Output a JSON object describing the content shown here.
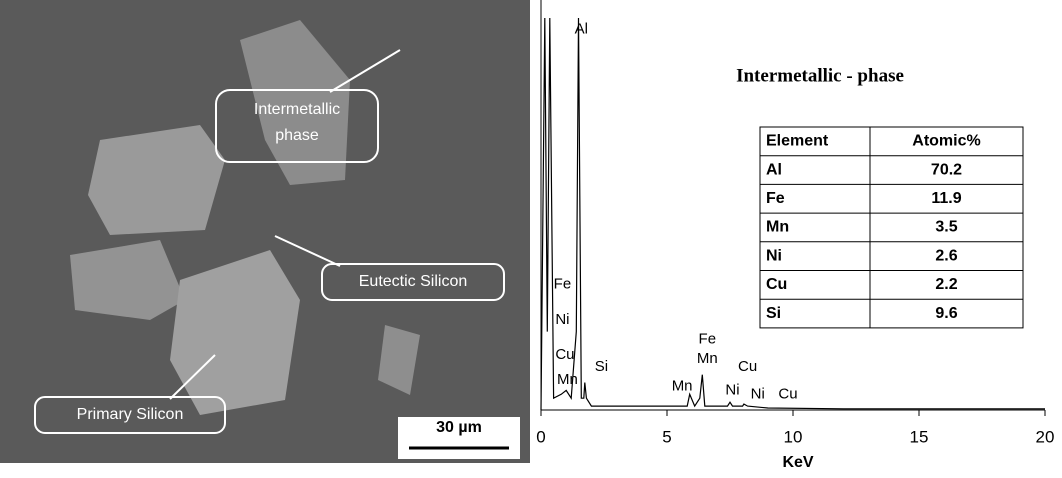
{
  "sem": {
    "labels": {
      "intermetallic": [
        "Intermetallic",
        "phase"
      ],
      "eutectic": "Eutectic Silicon",
      "primary": "Primary Silicon"
    },
    "scale_bar": "30 µm"
  },
  "chart_data": {
    "type": "line",
    "title": "Intermetallic - phase",
    "x_label": "KeV",
    "x": [
      0,
      0.15,
      0.25,
      0.35,
      0.5,
      0.8,
      1.0,
      1.2,
      1.4,
      1.49,
      1.6,
      1.7,
      1.74,
      1.8,
      2.0,
      3,
      5,
      5.8,
      5.9,
      6.1,
      6.3,
      6.4,
      6.5,
      7.0,
      7.4,
      7.5,
      7.6,
      8.0,
      8.05,
      8.2,
      9,
      12,
      20
    ],
    "values": [
      0,
      100,
      20,
      100,
      3,
      4,
      5,
      3,
      20,
      100,
      3,
      3,
      7,
      3,
      1,
      1,
      1,
      1,
      4,
      1,
      3,
      9,
      1,
      1,
      1,
      2,
      1,
      1,
      1.5,
      1,
      0.5,
      0.3,
      0.3
    ],
    "color": "#000000",
    "xlim": [
      0,
      20
    ],
    "xticks": [
      0,
      5,
      10,
      15,
      20
    ],
    "ylim": [
      0,
      100
    ],
    "annotations": [
      {
        "text": "Al",
        "x": 1.6,
        "y": 97
      },
      {
        "text": "Fe",
        "x": 0.85,
        "y": 32
      },
      {
        "text": "Ni",
        "x": 0.85,
        "y": 23
      },
      {
        "text": "Cu",
        "x": 0.95,
        "y": 14
      },
      {
        "text": "Mn",
        "x": 1.05,
        "y": 7.6
      },
      {
        "text": "Si",
        "x": 2.4,
        "y": 11
      },
      {
        "text": "Mn",
        "x": 5.6,
        "y": 6
      },
      {
        "text": "Fe",
        "x": 6.6,
        "y": 18
      },
      {
        "text": "Mn",
        "x": 6.6,
        "y": 13
      },
      {
        "text": "Cu",
        "x": 8.2,
        "y": 11
      },
      {
        "text": "Ni",
        "x": 7.6,
        "y": 5
      },
      {
        "text": "Ni",
        "x": 8.6,
        "y": 4
      },
      {
        "text": "Cu",
        "x": 9.8,
        "y": 4
      }
    ]
  },
  "table": {
    "header": [
      "Element",
      "Atomic%"
    ],
    "rows": [
      [
        "Al",
        70.2
      ],
      [
        "Fe",
        11.9
      ],
      [
        "Mn",
        3.5
      ],
      [
        "Ni",
        2.6
      ],
      [
        "Cu",
        2.2
      ],
      [
        "Si",
        9.6
      ]
    ]
  }
}
